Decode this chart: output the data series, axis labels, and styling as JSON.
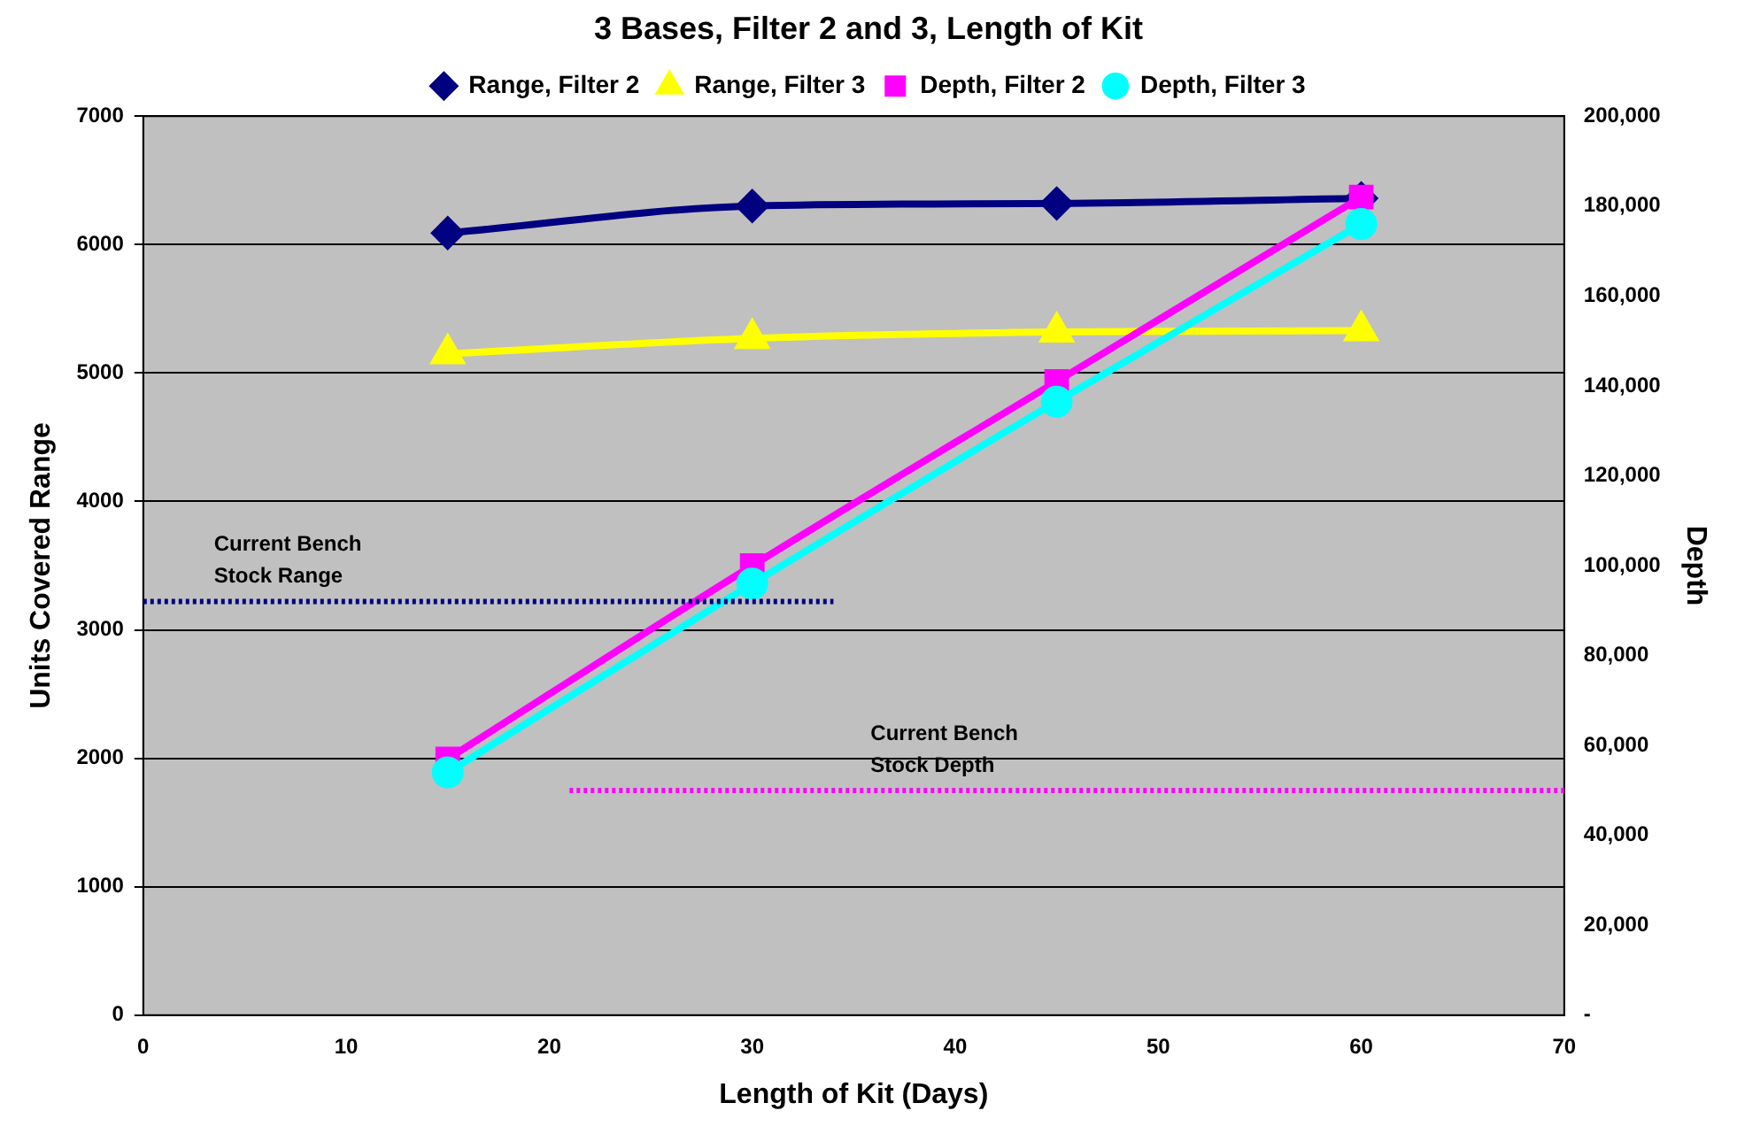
{
  "chart_data": {
    "type": "line",
    "title": "3 Bases, Filter 2 and 3, Length of Kit",
    "xlabel": "Length of Kit (Days)",
    "ylabel": "Units Covered Range",
    "y2label": "Depth",
    "x": [
      15,
      30,
      45,
      60
    ],
    "series": [
      {
        "name": "Range, Filter 2",
        "color": "#000080",
        "marker": "diamond",
        "values": [
          6090,
          6300,
          6320,
          6360
        ]
      },
      {
        "name": "Range, Filter 3",
        "color": "#ffff00",
        "marker": "triangle",
        "values": [
          5150,
          5270,
          5320,
          5330
        ]
      },
      {
        "name": "Depth, Filter 2",
        "color": "#ff00ff",
        "marker": "square",
        "axis": "y2",
        "values": [
          57000,
          100000,
          141000,
          182000
        ]
      },
      {
        "name": "Depth, Filter 3",
        "color": "#00ffff",
        "marker": "circle",
        "axis": "y2",
        "values": [
          54000,
          96000,
          136500,
          176000
        ]
      },
      {
        "color": "#000080",
        "marker": "none",
        "line_style": "dotted",
        "x": [
          0,
          34
        ],
        "values": [
          3220,
          3220
        ]
      },
      {
        "color": "#ff00ff",
        "marker": "none",
        "line_style": "dotted",
        "axis": "y2",
        "x": [
          21,
          70
        ],
        "values": [
          50000,
          50000
        ]
      }
    ],
    "annotations": [
      "Current Bench\nStock Range",
      "Current Bench\nStock Depth"
    ],
    "xlim": [
      0,
      70
    ],
    "xticks": [
      0,
      10,
      20,
      30,
      40,
      50,
      60,
      70
    ],
    "ylim": [
      0,
      7000
    ],
    "yticks": [
      0,
      1000,
      2000,
      3000,
      4000,
      5000,
      6000,
      7000
    ],
    "y2lim": [
      0,
      200000
    ],
    "y2ticks": [
      {
        "value": 0,
        "label": "-"
      },
      {
        "value": 20000,
        "label": "20,000"
      },
      {
        "value": 40000,
        "label": "40,000"
      },
      {
        "value": 60000,
        "label": "60,000"
      },
      {
        "value": 80000,
        "label": "80,000"
      },
      {
        "value": 100000,
        "label": "100,000"
      },
      {
        "value": 120000,
        "label": "120,000"
      },
      {
        "value": 140000,
        "label": "140,000"
      },
      {
        "value": 160000,
        "label": "160,000"
      },
      {
        "value": 180000,
        "label": "180,000"
      },
      {
        "value": 200000,
        "label": "200,000"
      }
    ],
    "grid": "y",
    "legend": "top"
  }
}
